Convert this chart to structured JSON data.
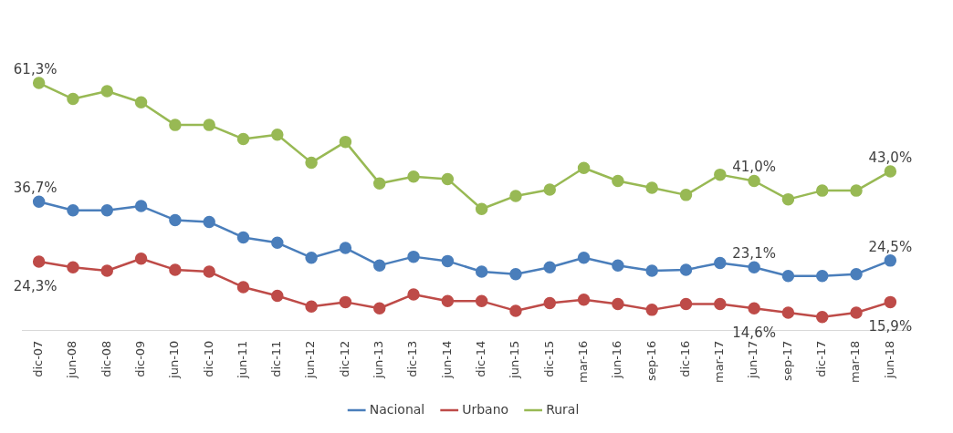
{
  "chart_data": {
    "type": "line",
    "categories": [
      "dic-07",
      "jun-08",
      "dic-08",
      "dic-09",
      "jun-10",
      "dic-10",
      "jun-11",
      "dic-11",
      "jun-12",
      "dic-12",
      "jun-13",
      "dic-13",
      "jun-14",
      "dic-14",
      "jun-15",
      "dic-15",
      "mar-16",
      "jun-16",
      "sep-16",
      "dic-16",
      "mar-17",
      "jun-17",
      "sep-17",
      "dic-17",
      "mar-18",
      "jun-18"
    ],
    "series": [
      {
        "name": "Nacional",
        "color": "#4a7ebb",
        "values": [
          36.7,
          34.9,
          34.9,
          35.8,
          32.9,
          32.5,
          29.3,
          28.2,
          25.1,
          27.1,
          23.5,
          25.3,
          24.4,
          22.2,
          21.7,
          23.1,
          25.1,
          23.5,
          22.4,
          22.6,
          24.0,
          23.1,
          21.3,
          21.3,
          21.7,
          24.5
        ],
        "value_labels": [
          "36,7%",
          null,
          null,
          null,
          null,
          null,
          null,
          null,
          null,
          null,
          null,
          null,
          null,
          null,
          null,
          null,
          null,
          null,
          null,
          null,
          null,
          "23,1%",
          null,
          null,
          null,
          "24,5%"
        ]
      },
      {
        "name": "Urbano",
        "color": "#be4b48",
        "values": [
          24.3,
          23.1,
          22.4,
          24.9,
          22.6,
          22.2,
          19.0,
          17.2,
          15.0,
          15.9,
          14.6,
          17.5,
          16.1,
          16.1,
          14.1,
          15.7,
          16.4,
          15.5,
          14.3,
          15.5,
          15.5,
          14.6,
          13.7,
          12.8,
          13.7,
          15.9
        ],
        "value_labels": [
          "24,3%",
          null,
          null,
          null,
          null,
          null,
          null,
          null,
          null,
          null,
          null,
          null,
          null,
          null,
          null,
          null,
          null,
          null,
          null,
          null,
          null,
          "14,6%",
          null,
          null,
          null,
          "15,9%"
        ]
      },
      {
        "name": "Rural",
        "color": "#98b954",
        "values": [
          61.3,
          58.0,
          59.6,
          57.3,
          52.6,
          52.6,
          49.7,
          50.6,
          44.8,
          49.1,
          40.5,
          41.9,
          41.4,
          35.2,
          37.9,
          39.2,
          43.7,
          41.0,
          39.6,
          38.1,
          42.3,
          41.0,
          37.2,
          39.0,
          39.0,
          43.0
        ],
        "value_labels": [
          "61,3%",
          null,
          null,
          null,
          null,
          null,
          null,
          null,
          null,
          null,
          null,
          null,
          null,
          null,
          null,
          null,
          null,
          null,
          null,
          null,
          null,
          "41,0%",
          null,
          null,
          null,
          "43,0%"
        ]
      }
    ],
    "tick_labels": "x",
    "legend": "bottom",
    "marker": "circle",
    "line_style": "solid",
    "grid": false
  }
}
